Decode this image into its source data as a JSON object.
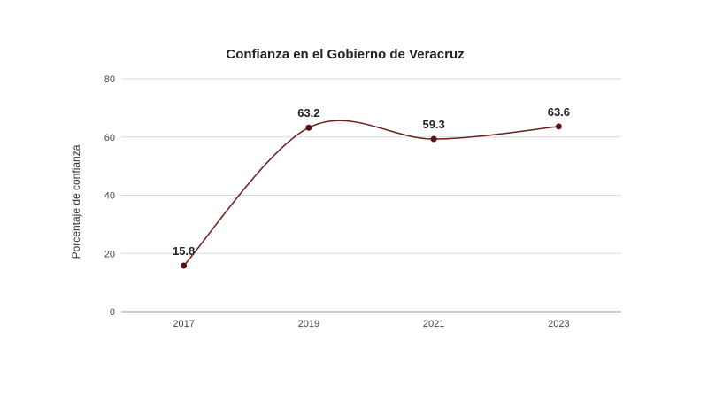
{
  "chart_data": {
    "type": "line",
    "title": "Confianza en el Gobierno de Veracruz",
    "xlabel": "",
    "ylabel": "Porcentaje de confianza",
    "categories": [
      "2017",
      "2019",
      "2021",
      "2023"
    ],
    "series": [
      {
        "values": [
          15.8,
          63.2,
          59.3,
          63.6
        ],
        "labels": [
          "15.8",
          "63.2",
          "59.3",
          "63.6"
        ]
      }
    ],
    "ylim": [
      0,
      80
    ],
    "yticks": [
      "0",
      "20",
      "40",
      "60",
      "80"
    ],
    "grid": true,
    "legend": "none",
    "colors": {
      "line": "#6b1f1f",
      "marker": "#5a1010"
    }
  }
}
